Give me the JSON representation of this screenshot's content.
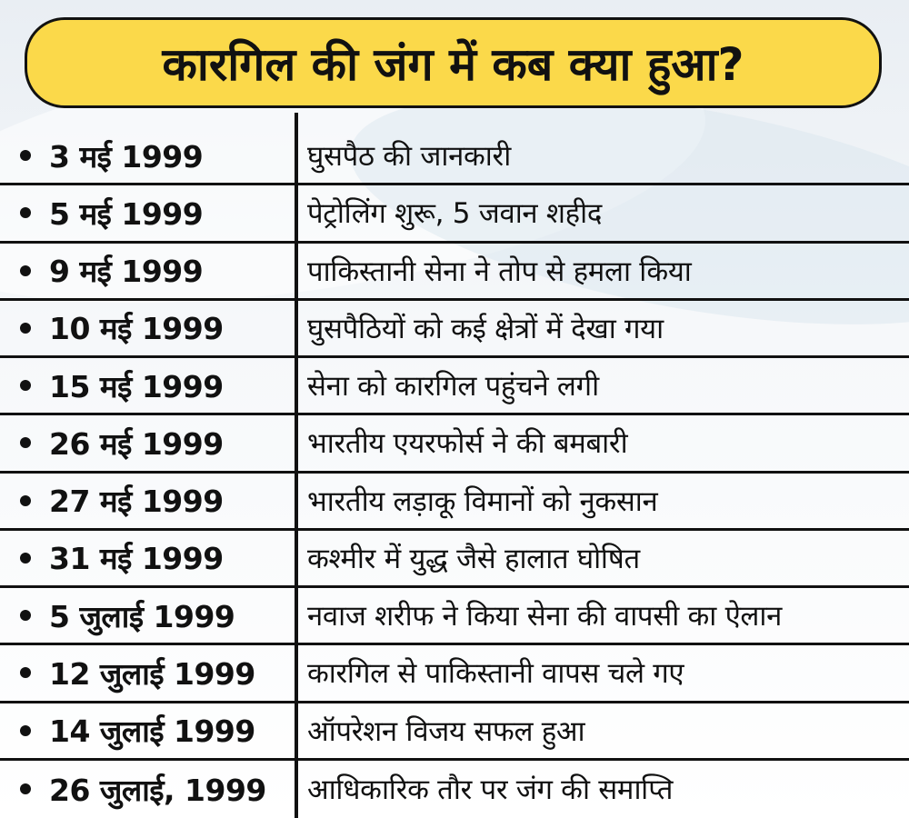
{
  "title": "कारगिल की जंग में कब क्या हुआ?",
  "rows": [
    {
      "date": "3 मई 1999",
      "event": "घुसपैठ की जानकारी"
    },
    {
      "date": "5 मई 1999",
      "event": "पेट्रोलिंग शुरू, 5 जवान शहीद"
    },
    {
      "date": "9 मई 1999",
      "event": "पाकिस्तानी सेना ने तोप से हमला किया"
    },
    {
      "date": "10 मई 1999",
      "event": "घुसपैठियों को कई क्षेत्रों में देखा गया"
    },
    {
      "date": "15 मई 1999",
      "event": "सेना को कारगिल पहुंचने लगी"
    },
    {
      "date": "26 मई 1999",
      "event": "भारतीय एयरफोर्स ने की बमबारी"
    },
    {
      "date": "27 मई 1999",
      "event": "भारतीय लड़ाकू विमानों को नुकसान"
    },
    {
      "date": "31 मई 1999",
      "event": "कश्मीर में युद्ध जैसे हालात घोषित"
    },
    {
      "date": "5 जुलाई 1999",
      "event": "नवाज शरीफ ने किया सेना की वापसी का ऐलान"
    },
    {
      "date": "12 जुलाई 1999",
      "event": "कारगिल से पाकिस्तानी वापस चले गए"
    },
    {
      "date": "14 जुलाई 1999",
      "event": "ऑपरेशन विजय सफल हुआ"
    },
    {
      "date": "26 जुलाई, 1999",
      "event": "आधिकारिक तौर पर जंग की समाप्ति"
    }
  ]
}
